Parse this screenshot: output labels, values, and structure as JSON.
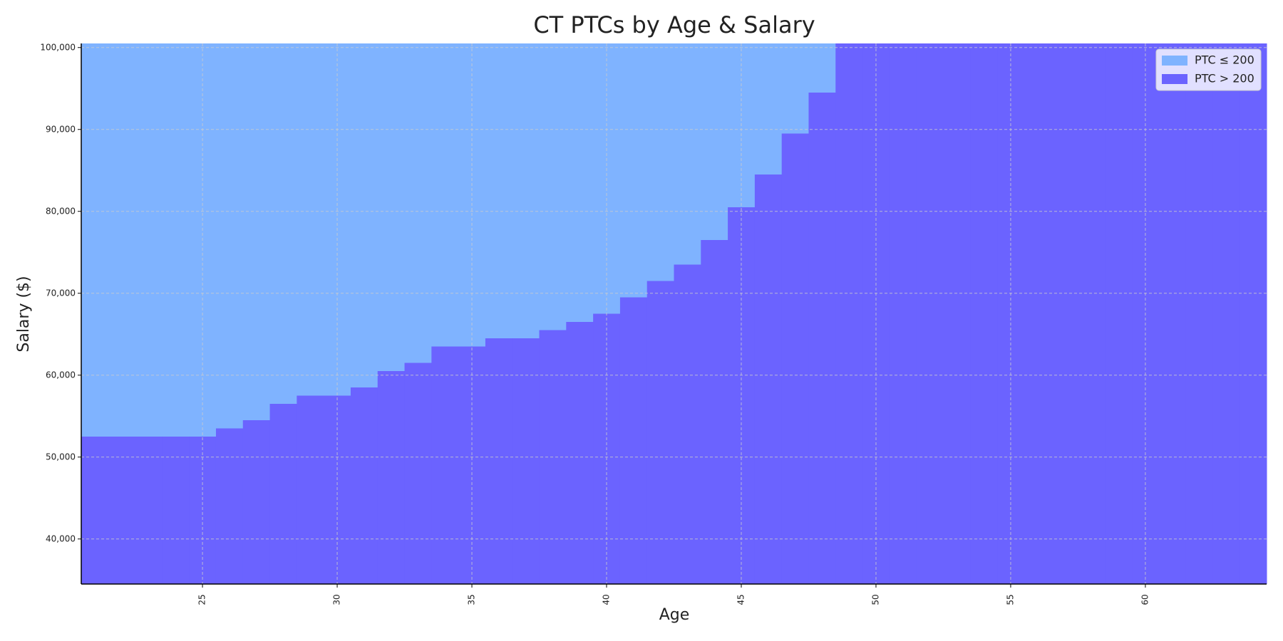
{
  "chart_data": {
    "type": "step-area",
    "title": "CT PTCs by Age & Salary",
    "x_label": "Age",
    "y_label": "Salary ($)",
    "x": [
      21,
      22,
      23,
      24,
      25,
      26,
      27,
      28,
      29,
      30,
      31,
      32,
      33,
      34,
      35,
      36,
      37,
      38,
      39,
      40,
      41,
      42,
      43,
      44,
      45,
      46,
      47,
      48,
      49,
      50,
      51,
      52,
      53,
      54,
      55,
      56,
      57,
      58,
      59,
      60,
      61,
      62,
      63,
      64
    ],
    "values": [
      52500,
      52500,
      52500,
      52500,
      52500,
      53500,
      54500,
      56500,
      57500,
      57500,
      58500,
      60500,
      61500,
      63500,
      63500,
      64500,
      64500,
      65500,
      66500,
      67500,
      69500,
      71500,
      73500,
      76500,
      80500,
      84500,
      89500,
      94500,
      100500,
      100500,
      100500,
      100500,
      100500,
      100500,
      100500,
      100500,
      100500,
      100500,
      100500,
      100500,
      100500,
      100500,
      100500,
      100500
    ],
    "series": [
      {
        "name": "PTC ≤ 200",
        "color": "#7fb3ff"
      },
      {
        "name": "PTC > 200",
        "color": "#6b63ff"
      }
    ],
    "xlim": [
      20.5,
      64.5
    ],
    "ylim": [
      34500,
      100500
    ],
    "xticks": [
      25,
      30,
      35,
      40,
      45,
      50,
      55,
      60
    ],
    "yticks": [
      {
        "value": 40000,
        "label": "40,000"
      },
      {
        "value": 50000,
        "label": "50,000"
      },
      {
        "value": 60000,
        "label": "60,000"
      },
      {
        "value": 70000,
        "label": "70,000"
      },
      {
        "value": 80000,
        "label": "80,000"
      },
      {
        "value": 90000,
        "label": "90,000"
      },
      {
        "value": 100000,
        "label": "100,000"
      }
    ],
    "grid": true,
    "legend": "upper right"
  }
}
